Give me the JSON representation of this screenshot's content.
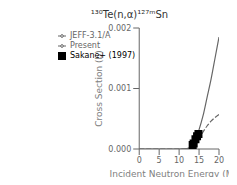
{
  "chart_data": {
    "type": "line",
    "title": "¹³⁰Te(n,α)¹²⁷ᵐSn",
    "xlabel": "Incident Neutron Energy (MeV)",
    "ylabel": "Cross Section (b)",
    "xlim": [
      0,
      20
    ],
    "ylim": [
      0,
      0.002
    ],
    "xticks": [
      0,
      5,
      10,
      15,
      20
    ],
    "yticks": [
      {
        "value": 0,
        "label": "0.000"
      },
      {
        "value": 0.001,
        "label": "0.001"
      },
      {
        "value": 0.002,
        "label": "0.002"
      }
    ],
    "legend": "upper left",
    "series": [
      {
        "name": "Present",
        "type": "line",
        "color": "#666666",
        "line_style": "solid",
        "x": [
          0,
          5,
          8,
          9,
          10,
          11,
          12,
          13,
          14,
          15,
          16,
          17,
          18,
          19,
          20
        ],
        "values": [
          0,
          0,
          1e-08,
          5e-08,
          2e-07,
          1e-06,
          8e-06,
          4e-05,
          0.00014,
          0.00032,
          0.00055,
          0.00085,
          0.00115,
          0.0015,
          0.00185
        ]
      },
      {
        "name": "JEFF-3.1/A",
        "type": "line",
        "color": "#666666",
        "line_style": "dashed",
        "x": [
          0,
          5,
          8,
          9,
          10,
          11,
          12,
          13,
          14,
          15,
          16,
          17,
          18,
          19,
          20
        ],
        "values": [
          0,
          0,
          1e-09,
          1e-08,
          5e-08,
          3e-07,
          3e-06,
          2e-05,
          7e-05,
          0.00016,
          0.00028,
          0.00038,
          0.00046,
          0.00052,
          0.00057
        ]
      },
      {
        "name": "Sakane+ (1997)",
        "type": "scatter",
        "color": "#000000",
        "marker": "square",
        "x": [
          13.4,
          13.65,
          14.1,
          14.5,
          14.85
        ],
        "values": [
          6.5e-05,
          9e-05,
          0.00016,
          0.00021,
          0.00025
        ],
        "y_error": [
          1.8e-05,
          2e-05,
          2.5e-05,
          2.8e-05,
          3e-05
        ],
        "x_error": [
          0.15,
          0.15,
          0.15,
          0.15,
          0.15
        ]
      }
    ]
  }
}
